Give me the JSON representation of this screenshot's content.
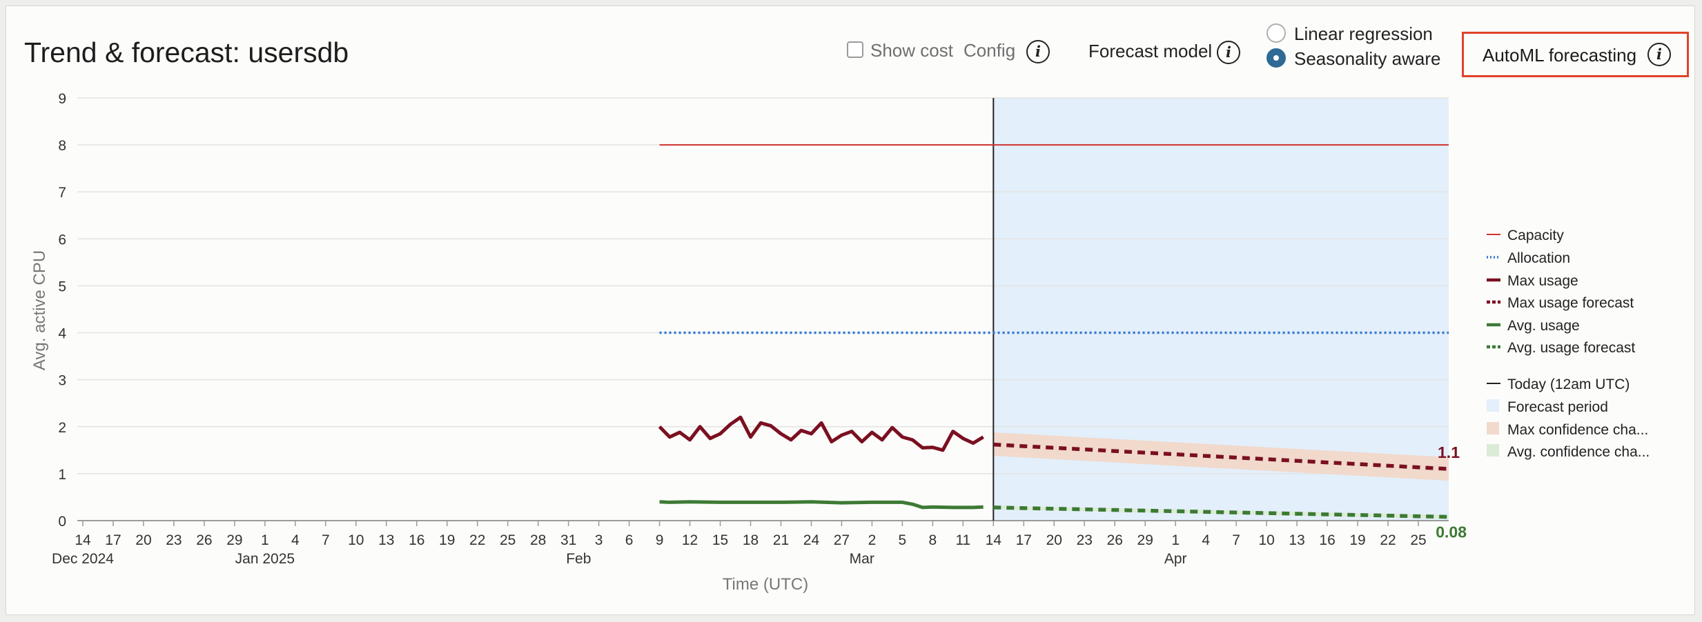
{
  "header": {
    "title": "Trend & forecast: usersdb",
    "show_cost_label": "Show cost",
    "config_label": "Config",
    "forecast_model_label": "Forecast model",
    "linear_regression_label": "Linear regression",
    "seasonality_aware_label": "Seasonality aware",
    "selected_model": "Seasonality aware",
    "automl_label": "AutoML forecasting",
    "info_glyph": "i"
  },
  "chart_data": {
    "type": "line",
    "title": "Trend & forecast: usersdb",
    "xlabel": "Time (UTC)",
    "ylabel": "Avg. active CPU",
    "ylim": [
      0,
      9
    ],
    "yticks": [
      "0",
      "1",
      "2",
      "3",
      "4",
      "5",
      "6",
      "7",
      "8",
      "9"
    ],
    "xlim": [
      "2024-12-14",
      "2025-04-28"
    ],
    "xticks": [
      {
        "date": "2024-12-14",
        "label": "14"
      },
      {
        "date": "2024-12-17",
        "label": "17"
      },
      {
        "date": "2024-12-20",
        "label": "20"
      },
      {
        "date": "2024-12-23",
        "label": "23"
      },
      {
        "date": "2024-12-26",
        "label": "26"
      },
      {
        "date": "2024-12-29",
        "label": "29"
      },
      {
        "date": "2025-01-01",
        "label": "1"
      },
      {
        "date": "2025-01-04",
        "label": "4"
      },
      {
        "date": "2025-01-07",
        "label": "7"
      },
      {
        "date": "2025-01-10",
        "label": "10"
      },
      {
        "date": "2025-01-13",
        "label": "13"
      },
      {
        "date": "2025-01-16",
        "label": "16"
      },
      {
        "date": "2025-01-19",
        "label": "19"
      },
      {
        "date": "2025-01-22",
        "label": "22"
      },
      {
        "date": "2025-01-25",
        "label": "25"
      },
      {
        "date": "2025-01-28",
        "label": "28"
      },
      {
        "date": "2025-01-31",
        "label": "31"
      },
      {
        "date": "2025-02-03",
        "label": "3"
      },
      {
        "date": "2025-02-06",
        "label": "6"
      },
      {
        "date": "2025-02-09",
        "label": "9"
      },
      {
        "date": "2025-02-12",
        "label": "12"
      },
      {
        "date": "2025-02-15",
        "label": "15"
      },
      {
        "date": "2025-02-18",
        "label": "18"
      },
      {
        "date": "2025-02-21",
        "label": "21"
      },
      {
        "date": "2025-02-24",
        "label": "24"
      },
      {
        "date": "2025-02-27",
        "label": "27"
      },
      {
        "date": "2025-03-02",
        "label": "2"
      },
      {
        "date": "2025-03-05",
        "label": "5"
      },
      {
        "date": "2025-03-08",
        "label": "8"
      },
      {
        "date": "2025-03-11",
        "label": "11"
      },
      {
        "date": "2025-03-14",
        "label": "14"
      },
      {
        "date": "2025-03-17",
        "label": "17"
      },
      {
        "date": "2025-03-20",
        "label": "20"
      },
      {
        "date": "2025-03-23",
        "label": "23"
      },
      {
        "date": "2025-03-26",
        "label": "26"
      },
      {
        "date": "2025-03-29",
        "label": "29"
      },
      {
        "date": "2025-04-01",
        "label": "1"
      },
      {
        "date": "2025-04-04",
        "label": "4"
      },
      {
        "date": "2025-04-07",
        "label": "7"
      },
      {
        "date": "2025-04-10",
        "label": "10"
      },
      {
        "date": "2025-04-13",
        "label": "13"
      },
      {
        "date": "2025-04-16",
        "label": "16"
      },
      {
        "date": "2025-04-19",
        "label": "19"
      },
      {
        "date": "2025-04-22",
        "label": "22"
      },
      {
        "date": "2025-04-25",
        "label": "25"
      }
    ],
    "month_labels": [
      {
        "date": "2024-12-14",
        "label": "Dec 2024"
      },
      {
        "date": "2025-01-01",
        "label": "Jan 2025"
      },
      {
        "date": "2025-02-01",
        "label": "Feb"
      },
      {
        "date": "2025-03-01",
        "label": "Mar"
      },
      {
        "date": "2025-04-01",
        "label": "Apr"
      }
    ],
    "today": "2025-03-14",
    "forecast_period": [
      "2025-03-14",
      "2025-04-28"
    ],
    "grid": true,
    "legend_position": "right",
    "series": [
      {
        "name": "Capacity",
        "style": "line",
        "color": "#d0312d",
        "x": [
          "2025-02-09",
          "2025-04-28"
        ],
        "y": [
          8,
          8
        ]
      },
      {
        "name": "Allocation",
        "style": "dotted",
        "color": "#2f78d8",
        "x": [
          "2025-02-09",
          "2025-04-28"
        ],
        "y": [
          4,
          4
        ]
      },
      {
        "name": "Max usage",
        "style": "thick",
        "color": "#7a1020",
        "x": [
          "2025-02-09",
          "2025-02-10",
          "2025-02-11",
          "2025-02-12",
          "2025-02-13",
          "2025-02-14",
          "2025-02-15",
          "2025-02-16",
          "2025-02-17",
          "2025-02-18",
          "2025-02-19",
          "2025-02-20",
          "2025-02-21",
          "2025-02-22",
          "2025-02-23",
          "2025-02-24",
          "2025-02-25",
          "2025-02-26",
          "2025-02-27",
          "2025-02-28",
          "2025-03-01",
          "2025-03-02",
          "2025-03-03",
          "2025-03-04",
          "2025-03-05",
          "2025-03-06",
          "2025-03-07",
          "2025-03-08",
          "2025-03-09",
          "2025-03-10",
          "2025-03-11",
          "2025-03-12",
          "2025-03-13"
        ],
        "y": [
          2.0,
          1.78,
          1.88,
          1.72,
          2.0,
          1.75,
          1.85,
          2.05,
          2.2,
          1.78,
          2.08,
          2.02,
          1.85,
          1.72,
          1.92,
          1.85,
          2.08,
          1.68,
          1.82,
          1.9,
          1.68,
          1.88,
          1.72,
          1.98,
          1.78,
          1.72,
          1.55,
          1.56,
          1.5,
          1.9,
          1.75,
          1.65,
          1.78
        ]
      },
      {
        "name": "Max usage forecast",
        "style": "dashed",
        "color": "#7a1020",
        "x": [
          "2025-03-14",
          "2025-04-28"
        ],
        "y": [
          1.62,
          1.1
        ]
      },
      {
        "name": "Avg. usage",
        "style": "thick",
        "color": "#3d7a34",
        "x": [
          "2025-02-09",
          "2025-02-10",
          "2025-02-12",
          "2025-02-15",
          "2025-02-18",
          "2025-02-21",
          "2025-02-24",
          "2025-02-27",
          "2025-03-02",
          "2025-03-05",
          "2025-03-06",
          "2025-03-07",
          "2025-03-08",
          "2025-03-10",
          "2025-03-12",
          "2025-03-13"
        ],
        "y": [
          0.4,
          0.39,
          0.4,
          0.39,
          0.39,
          0.39,
          0.4,
          0.38,
          0.39,
          0.39,
          0.35,
          0.28,
          0.29,
          0.28,
          0.28,
          0.29
        ]
      },
      {
        "name": "Avg. usage forecast",
        "style": "dashed",
        "color": "#3d7a34",
        "x": [
          "2025-03-14",
          "2025-04-28"
        ],
        "y": [
          0.28,
          0.08
        ]
      }
    ],
    "confidence_bands": [
      {
        "name": "Max confidence cha...",
        "color": "#f1d9cc",
        "x": [
          "2025-03-14",
          "2025-04-28"
        ],
        "upper": [
          1.88,
          1.35
        ],
        "lower": [
          1.38,
          0.85
        ]
      },
      {
        "name": "Avg. confidence cha...",
        "color": "#dcebd6",
        "x": [
          "2025-03-14",
          "2025-04-28"
        ],
        "upper": [
          0.32,
          0.12
        ],
        "lower": [
          0.24,
          0.04
        ]
      }
    ],
    "end_labels": [
      {
        "text": "1.1",
        "value": 1.1,
        "color": "#7a1020"
      },
      {
        "text": "0.08",
        "value": 0.08,
        "color": "#3d7a34"
      }
    ],
    "legend": [
      {
        "label": "Capacity",
        "kind": "line",
        "color": "#d0312d"
      },
      {
        "label": "Allocation",
        "kind": "dotted",
        "color": "#2f78d8"
      },
      {
        "label": "Max usage",
        "kind": "thick",
        "color": "#7a1020"
      },
      {
        "label": "Max usage forecast",
        "kind": "dashed",
        "color": "#7a1020"
      },
      {
        "label": "Avg. usage",
        "kind": "thick",
        "color": "#3d7a34"
      },
      {
        "label": "Avg. usage forecast",
        "kind": "dashed",
        "color": "#3d7a34"
      },
      {
        "label": "Today (12am UTC)",
        "kind": "line",
        "color": "#222222"
      },
      {
        "label": "Forecast period",
        "kind": "box",
        "color": "#e3effa"
      },
      {
        "label": "Max confidence cha...",
        "kind": "box",
        "color": "#f1d9cc"
      },
      {
        "label": "Avg. confidence cha...",
        "kind": "box",
        "color": "#dcebd6"
      }
    ]
  }
}
